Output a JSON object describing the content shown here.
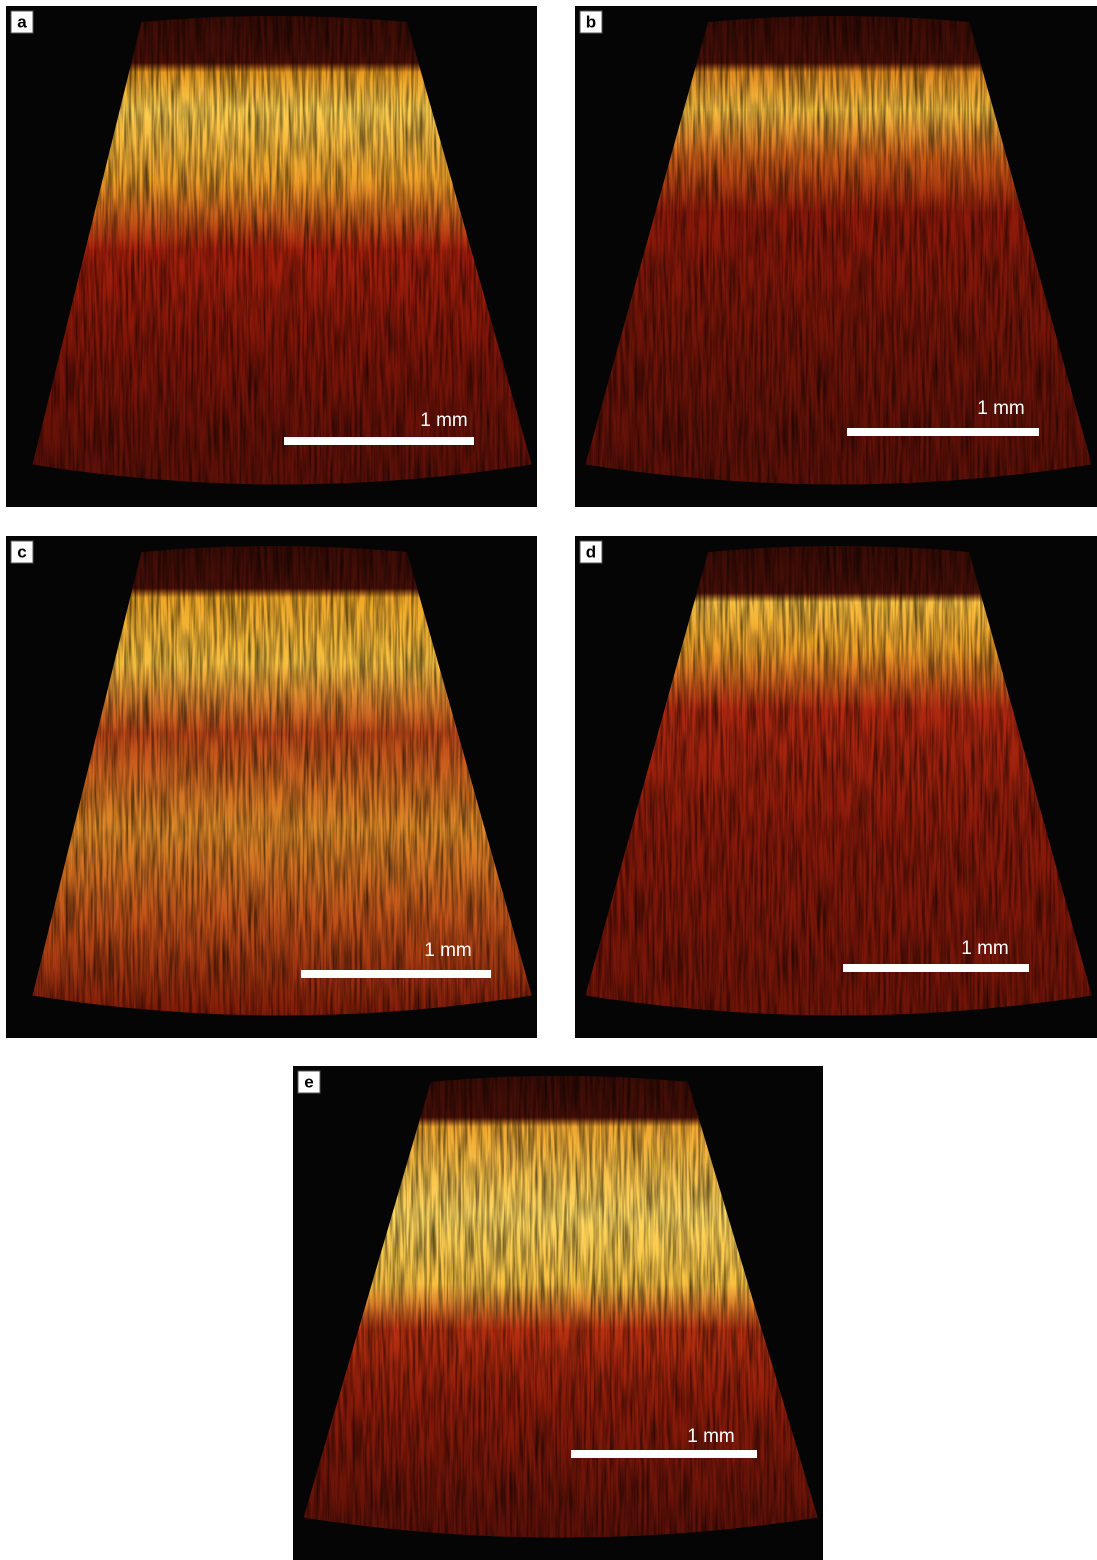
{
  "panels": [
    {
      "label": "a",
      "scale_label": "1 mm"
    },
    {
      "label": "b",
      "scale_label": "1 mm"
    },
    {
      "label": "c",
      "scale_label": "1 mm"
    },
    {
      "label": "d",
      "scale_label": "1 mm"
    },
    {
      "label": "e",
      "scale_label": "1 mm"
    }
  ]
}
